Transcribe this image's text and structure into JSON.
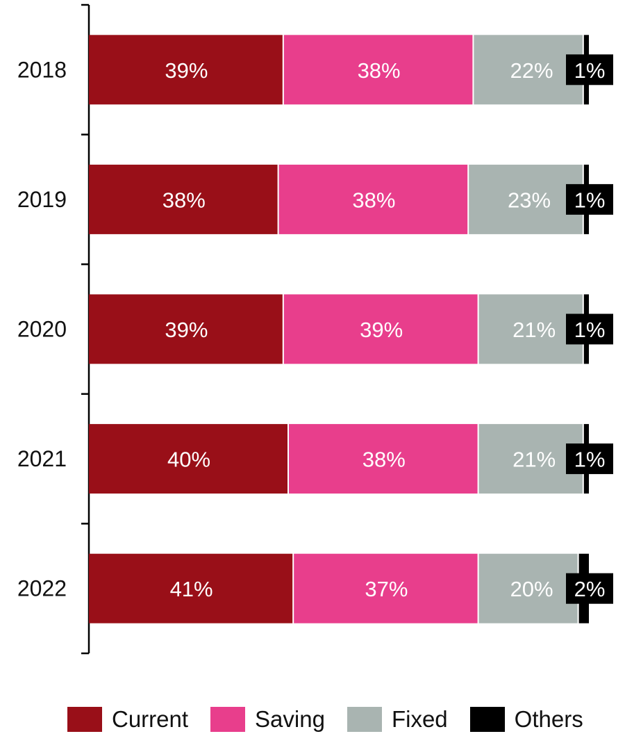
{
  "chart_data": {
    "type": "bar",
    "orientation": "horizontal",
    "stacked": true,
    "normalized_100_percent": true,
    "categories": [
      "2018",
      "2019",
      "2020",
      "2021",
      "2022"
    ],
    "series": [
      {
        "name": "Current",
        "color": "#990f18",
        "values": [
          39,
          38,
          39,
          40,
          41
        ],
        "labels": [
          "39%",
          "38%",
          "39%",
          "40%",
          "41%"
        ]
      },
      {
        "name": "Saving",
        "color": "#e83e8c",
        "values": [
          38,
          38,
          39,
          38,
          37
        ],
        "labels": [
          "38%",
          "38%",
          "39%",
          "38%",
          "37%"
        ]
      },
      {
        "name": "Fixed",
        "color": "#a9b4b1",
        "values": [
          22,
          23,
          21,
          21,
          20
        ],
        "labels": [
          "22%",
          "23%",
          "21%",
          "21%",
          "20%"
        ]
      },
      {
        "name": "Others",
        "color": "#000000",
        "values": [
          1,
          1,
          1,
          1,
          2
        ],
        "labels": [
          "1%",
          "1%",
          "1%",
          "1%",
          "2%"
        ]
      }
    ],
    "xlim": [
      0,
      100
    ],
    "grid": false,
    "legend_position": "bottom"
  }
}
